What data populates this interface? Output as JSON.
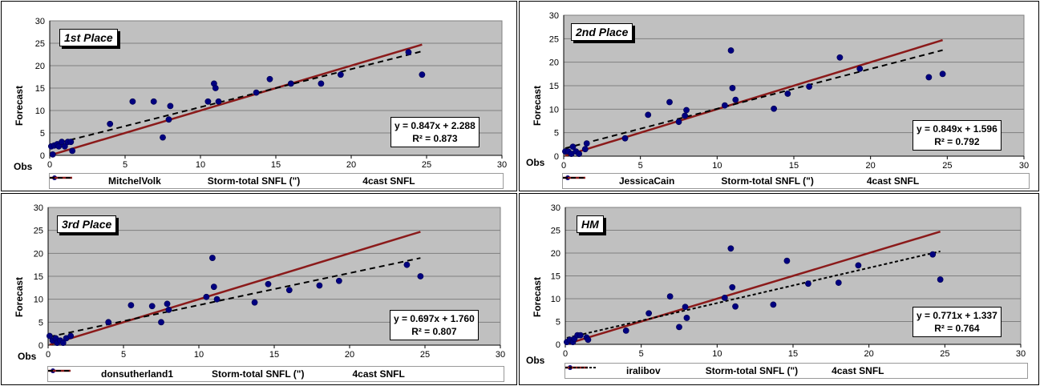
{
  "colors": {
    "plot_bg": "#c0c0c0",
    "dot": "#000080",
    "storm_line": "#8b1a1a",
    "forecast_line": "#000000",
    "grid": "#7f7f7f"
  },
  "chart_data": [
    {
      "type": "scatter",
      "place_label": "1st Place",
      "xlabel": "Obs",
      "ylabel": "Forecast",
      "xlim": [
        0,
        30
      ],
      "ylim": [
        0,
        30
      ],
      "xticks": [
        "0",
        "5",
        "10",
        "15",
        "20",
        "25",
        "30"
      ],
      "yticks": [
        "0",
        "5",
        "10",
        "15",
        "20",
        "25",
        "30"
      ],
      "equation": "y = 0.847x + 2.288",
      "r2": "R² = 0.873",
      "legend": {
        "series": "MitchelVolk",
        "storm": "Storm-total SNFL (\")",
        "forecast": "4cast SNFL"
      },
      "trend": {
        "slope": 0.847,
        "intercept": 2.288
      },
      "storm_line": {
        "slope": 1.0,
        "intercept": 0.0
      },
      "x": [
        0.1,
        0.2,
        0.3,
        0.5,
        0.6,
        0.8,
        1.0,
        1.2,
        1.4,
        1.5,
        4.0,
        5.5,
        6.9,
        7.5,
        7.9,
        8.0,
        10.5,
        10.9,
        11.0,
        11.2,
        13.7,
        14.6,
        16.0,
        18.0,
        19.3,
        23.8,
        24.7
      ],
      "y": [
        2.0,
        0.2,
        2.2,
        2.5,
        2.0,
        3.0,
        2.0,
        3.0,
        3.0,
        1.0,
        7.0,
        12.0,
        12.0,
        4.0,
        8.0,
        11.0,
        12.0,
        16.0,
        15.0,
        12.0,
        14.0,
        17.0,
        16.0,
        16.0,
        18.0,
        23.0,
        18.0
      ]
    },
    {
      "type": "scatter",
      "place_label": "2nd Place",
      "xlabel": "Obs",
      "ylabel": "Forecast",
      "xlim": [
        0,
        30
      ],
      "ylim": [
        0,
        30
      ],
      "xticks": [
        "0",
        "5",
        "10",
        "15",
        "20",
        "25",
        "30"
      ],
      "yticks": [
        "0",
        "5",
        "10",
        "15",
        "20",
        "25",
        "30"
      ],
      "equation": "y = 0.849x + 1.596",
      "r2": "R² = 0.792",
      "legend": {
        "series": "JessicaCain",
        "storm": "Storm-total SNFL (\")",
        "forecast": "4cast SNFL"
      },
      "trend": {
        "slope": 0.849,
        "intercept": 1.596
      },
      "storm_line": {
        "slope": 1.0,
        "intercept": 0.0
      },
      "x": [
        0.1,
        0.3,
        0.5,
        0.6,
        0.8,
        1.0,
        1.4,
        1.5,
        4.0,
        5.5,
        6.9,
        7.5,
        7.9,
        8.0,
        10.5,
        10.9,
        11.0,
        11.2,
        13.7,
        14.6,
        16.0,
        18.0,
        19.3,
        23.8,
        24.7
      ],
      "y": [
        1.0,
        1.0,
        0.5,
        2.0,
        1.0,
        0.5,
        1.5,
        2.7,
        3.8,
        8.8,
        11.5,
        7.3,
        8.6,
        9.8,
        10.8,
        22.5,
        14.5,
        12.0,
        10.1,
        13.3,
        14.8,
        21.0,
        18.6,
        16.8,
        17.5
      ]
    },
    {
      "type": "scatter",
      "place_label": "3rd Place",
      "xlabel": "Obs",
      "ylabel": "Forecast",
      "xlim": [
        0,
        30
      ],
      "ylim": [
        0,
        30
      ],
      "xticks": [
        "0",
        "5",
        "10",
        "15",
        "20",
        "25",
        "30"
      ],
      "yticks": [
        "0",
        "5",
        "10",
        "15",
        "20",
        "25",
        "30"
      ],
      "equation": "y = 0.697x + 1.760",
      "r2": "R² = 0.807",
      "legend": {
        "series": "donsutherland1",
        "storm": "Storm-total SNFL (\")",
        "forecast": "4cast SNFL"
      },
      "trend": {
        "slope": 0.697,
        "intercept": 1.76
      },
      "storm_line": {
        "slope": 1.0,
        "intercept": 0.0
      },
      "x": [
        0.1,
        0.3,
        0.5,
        0.6,
        0.8,
        1.0,
        1.2,
        1.5,
        4.0,
        5.5,
        6.9,
        7.5,
        7.9,
        8.0,
        10.5,
        10.9,
        11.0,
        11.2,
        13.7,
        14.6,
        16.0,
        18.0,
        19.3,
        23.8,
        24.7
      ],
      "y": [
        2.0,
        1.0,
        1.5,
        0.5,
        1.0,
        0.5,
        1.5,
        2.0,
        5.0,
        8.7,
        8.5,
        5.0,
        9.0,
        7.7,
        10.5,
        19.0,
        12.7,
        10.0,
        9.3,
        13.3,
        12.0,
        13.0,
        14.0,
        17.5,
        15.0
      ]
    },
    {
      "type": "scatter",
      "place_label": "HM",
      "xlabel": "Obs",
      "ylabel": "Forecast",
      "xlim": [
        0,
        30
      ],
      "ylim": [
        0,
        30
      ],
      "xticks": [
        "0",
        "5",
        "10",
        "15",
        "20",
        "25",
        "30"
      ],
      "yticks": [
        "0",
        "5",
        "10",
        "15",
        "20",
        "25",
        "30"
      ],
      "equation": "y = 0.771x + 1.337",
      "r2": "R² = 0.764",
      "legend": {
        "series": "iralibov",
        "storm": "Storm-total SNFL (\")",
        "forecast": "4cast SNFL"
      },
      "trend": {
        "slope": 0.771,
        "intercept": 1.337
      },
      "storm_line": {
        "slope": 1.0,
        "intercept": 0.0
      },
      "x": [
        0.1,
        0.3,
        0.5,
        0.6,
        0.8,
        1.0,
        1.4,
        1.5,
        4.0,
        5.5,
        6.9,
        7.5,
        7.9,
        8.0,
        10.5,
        10.9,
        11.0,
        11.2,
        13.7,
        14.6,
        16.0,
        18.0,
        19.3,
        24.2,
        24.7
      ],
      "y": [
        0.5,
        1.0,
        0.5,
        1.2,
        2.0,
        2.0,
        1.5,
        1.0,
        3.0,
        6.8,
        10.5,
        3.8,
        8.2,
        5.8,
        10.2,
        21.0,
        12.5,
        8.3,
        8.7,
        18.3,
        13.3,
        13.5,
        17.3,
        19.7,
        14.2
      ]
    }
  ]
}
